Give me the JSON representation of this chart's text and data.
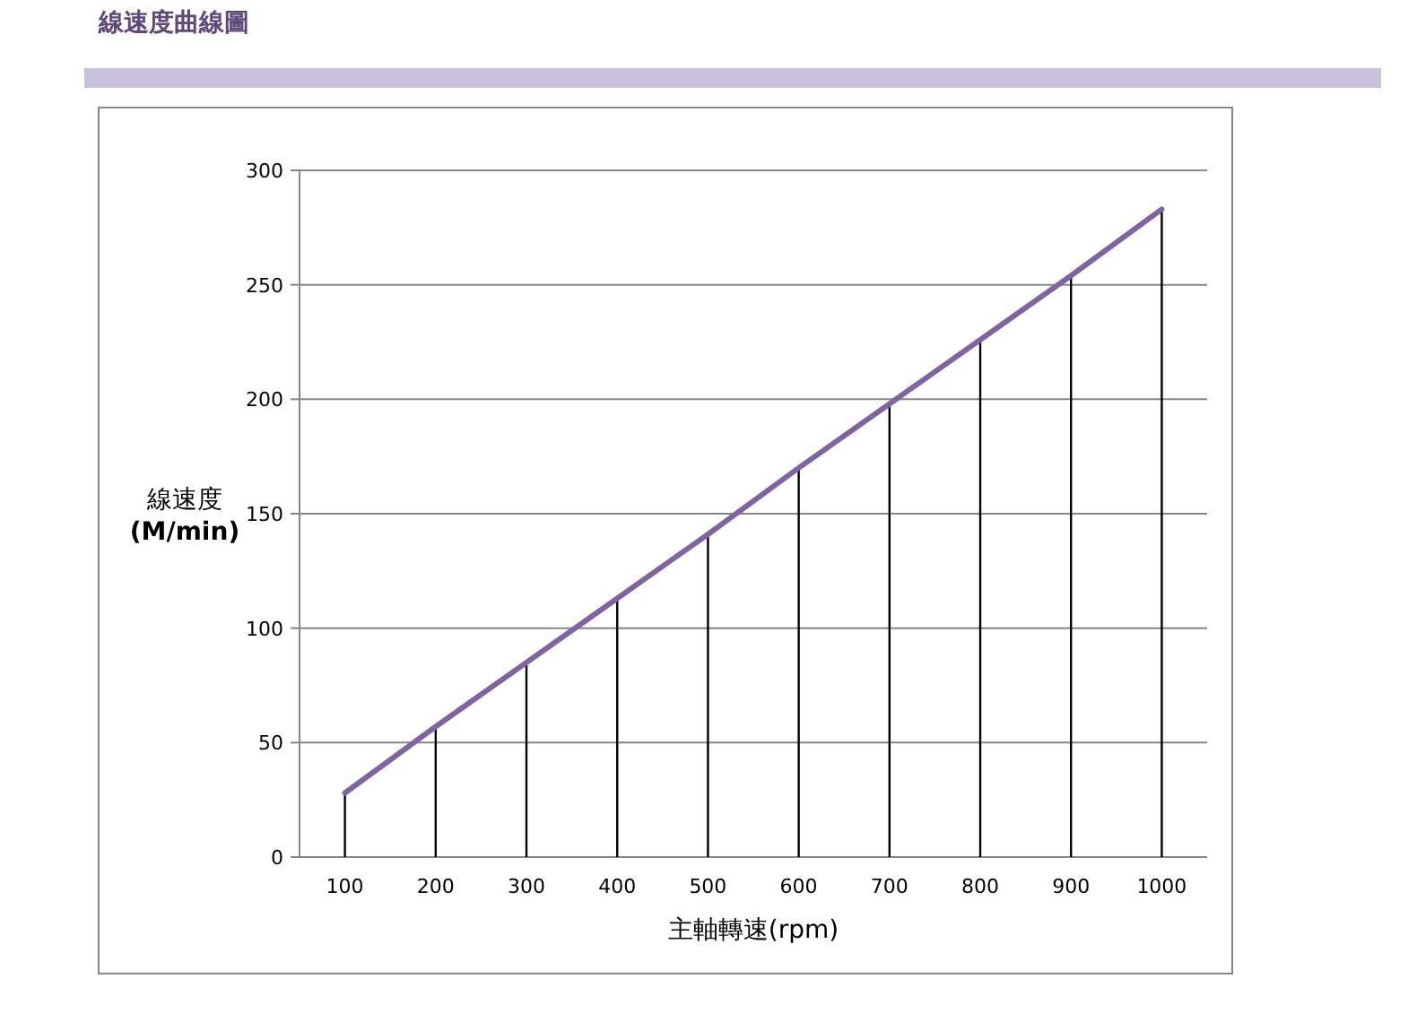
{
  "chart_data": {
    "type": "line",
    "title": "線速度曲線圖",
    "xlabel": "主軸轉速(rpm)",
    "ylabel": "線速度\n(M/min)",
    "categories": [
      "100",
      "200",
      "300",
      "400",
      "500",
      "600",
      "700",
      "800",
      "900",
      "1000"
    ],
    "series": [
      {
        "type": "bar",
        "color": "#000000",
        "values": [
          28,
          57,
          85,
          113,
          141,
          170,
          198,
          226,
          254,
          283
        ]
      },
      {
        "color": "#8064a2",
        "values": [
          28,
          57,
          85,
          113,
          141,
          170,
          198,
          226,
          254,
          283
        ]
      }
    ],
    "ylim": [
      0,
      300
    ],
    "yticks": [
      0,
      50,
      100,
      150,
      200,
      250,
      300
    ],
    "grid": "y"
  }
}
